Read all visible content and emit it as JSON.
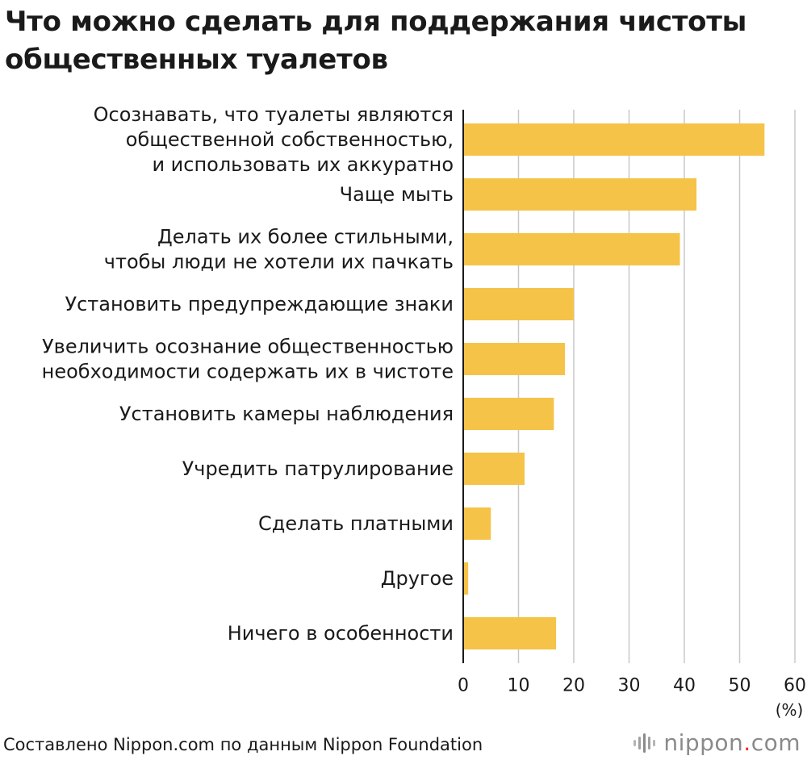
{
  "title_lines": [
    "Что можно сделать для поддержания чистоты",
    "общественных туалетов"
  ],
  "chart_data": {
    "type": "bar",
    "orientation": "horizontal",
    "title": "Что можно сделать для поддержания чистоты общественных туалетов",
    "categories": [
      "Осознавать, что туалеты являются\nобщественной собственностью,\nи использовать их аккуратно",
      "Чаще мыть",
      "Делать их более стильными,\nчтобы люди не хотели их пачкать",
      "Установить предупреждающие знаки",
      "Увеличить осознание общественностью\nнеобходимости содержать их в чистоте",
      "Установить камеры наблюдения",
      "Учредить патрулирование",
      "Сделать платными",
      "Другое",
      "Ничего в особенности"
    ],
    "values": [
      54.5,
      42.2,
      39.2,
      20.0,
      18.4,
      16.4,
      11.1,
      5.0,
      0.9,
      16.8
    ],
    "xlim": [
      0,
      60
    ],
    "xticks": [
      "0",
      "10",
      "20",
      "30",
      "40",
      "50",
      "60"
    ],
    "unit_label": "(%)",
    "grid": true,
    "bar_color": "#f5c348",
    "grid_color": "#c8c8c8",
    "axis_color": "#1a1a1a"
  },
  "footer": {
    "source": "Составлено Nippon.com по данным Nippon Foundation",
    "brand_name": "nippon",
    "brand_dot": ".",
    "brand_suffix": "com"
  },
  "colors": {
    "brand_gray": "#8a8a8a",
    "brand_red": "#e9302f"
  }
}
